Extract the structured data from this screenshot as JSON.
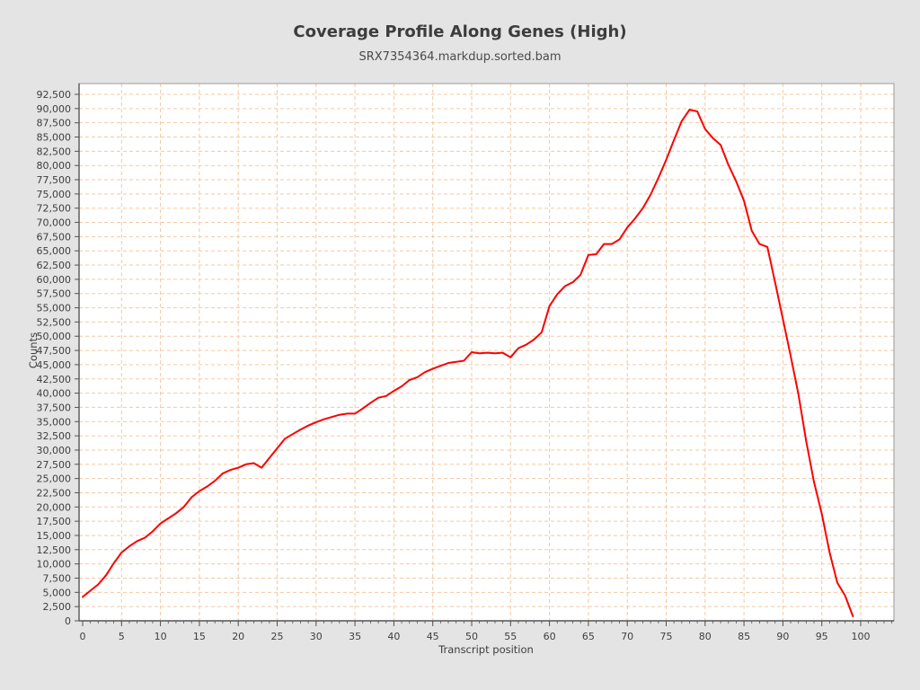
{
  "page": {
    "background_color": "#e4e4e4",
    "plot_background_color": "#ffffff"
  },
  "header": {
    "title": "Coverage Profile Along Genes (High)",
    "subtitle": "SRX7354364.markdup.sorted.bam"
  },
  "chart_data": {
    "type": "line",
    "title": "Coverage Profile Along Genes (High)",
    "subtitle": "SRX7354364.markdup.sorted.bam",
    "xlabel": "Transcript position",
    "ylabel": "Counts",
    "xlim": [
      0,
      104.3
    ],
    "ylim": [
      0,
      94400
    ],
    "grid": true,
    "grid_style": "dashed",
    "grid_color": "#f3c9a2",
    "line_color": "#fb0000",
    "frame_color": "#9b9b9b",
    "axis_color": "#545454",
    "tick_label_color": "#3e3e3e",
    "legend_position": "none",
    "x_ticks": [
      0,
      5,
      10,
      15,
      20,
      25,
      30,
      35,
      40,
      45,
      50,
      55,
      60,
      65,
      70,
      75,
      80,
      85,
      90,
      95,
      100
    ],
    "y_ticks": [
      0,
      2500,
      5000,
      7500,
      10000,
      12500,
      15000,
      17500,
      20000,
      22500,
      25000,
      27500,
      30000,
      32500,
      35000,
      37500,
      40000,
      42500,
      45000,
      47500,
      50000,
      52500,
      55000,
      57500,
      60000,
      62500,
      65000,
      67500,
      70000,
      72500,
      75000,
      77500,
      80000,
      82500,
      85000,
      87500,
      90000,
      92500
    ],
    "y_tick_labels": [
      "0",
      "2,500",
      "5,000",
      "7,500",
      "10,000",
      "12,500",
      "15,000",
      "17,500",
      "20,000",
      "22,500",
      "25,000",
      "27,500",
      "30,000",
      "32,500",
      "35,000",
      "37,500",
      "40,000",
      "42,500",
      "45,000",
      "47,500",
      "50,000",
      "52,500",
      "55,000",
      "57,500",
      "60,000",
      "62,500",
      "65,000",
      "67,500",
      "70,000",
      "72,500",
      "75,000",
      "77,500",
      "80,000",
      "82,500",
      "85,000",
      "87,500",
      "90,000",
      "92,500"
    ],
    "x_start": 0,
    "x_step": 1,
    "series": [
      {
        "name": "SRX7354364.markdup.sorted.bam",
        "values": [
          4200,
          5300,
          6400,
          8000,
          10100,
          12000,
          13100,
          14000,
          14600,
          15700,
          17100,
          18000,
          18900,
          20000,
          21700,
          22800,
          23600,
          24600,
          25900,
          26500,
          26900,
          27500,
          27700,
          26900,
          28600,
          30300,
          32000,
          32800,
          33600,
          34300,
          34900,
          35400,
          35800,
          36200,
          36400,
          36400,
          37300,
          38300,
          39200,
          39500,
          40400,
          41200,
          42300,
          42800,
          43700,
          44300,
          44800,
          45300,
          45500,
          45700,
          47200,
          47000,
          47100,
          47000,
          47100,
          46300,
          47900,
          48500,
          49400,
          50700,
          55300,
          57400,
          58800,
          59500,
          60800,
          64300,
          64400,
          66200,
          66200,
          67000,
          69100,
          70700,
          72500,
          74900,
          77800,
          81000,
          84500,
          87800,
          89800,
          89500,
          86400,
          84800,
          83600,
          80100,
          77200,
          73800,
          68500,
          66200,
          65700,
          59500,
          53000,
          46500,
          39800,
          31500,
          24400,
          18800,
          12000,
          6700,
          4400,
          800
        ]
      }
    ]
  }
}
